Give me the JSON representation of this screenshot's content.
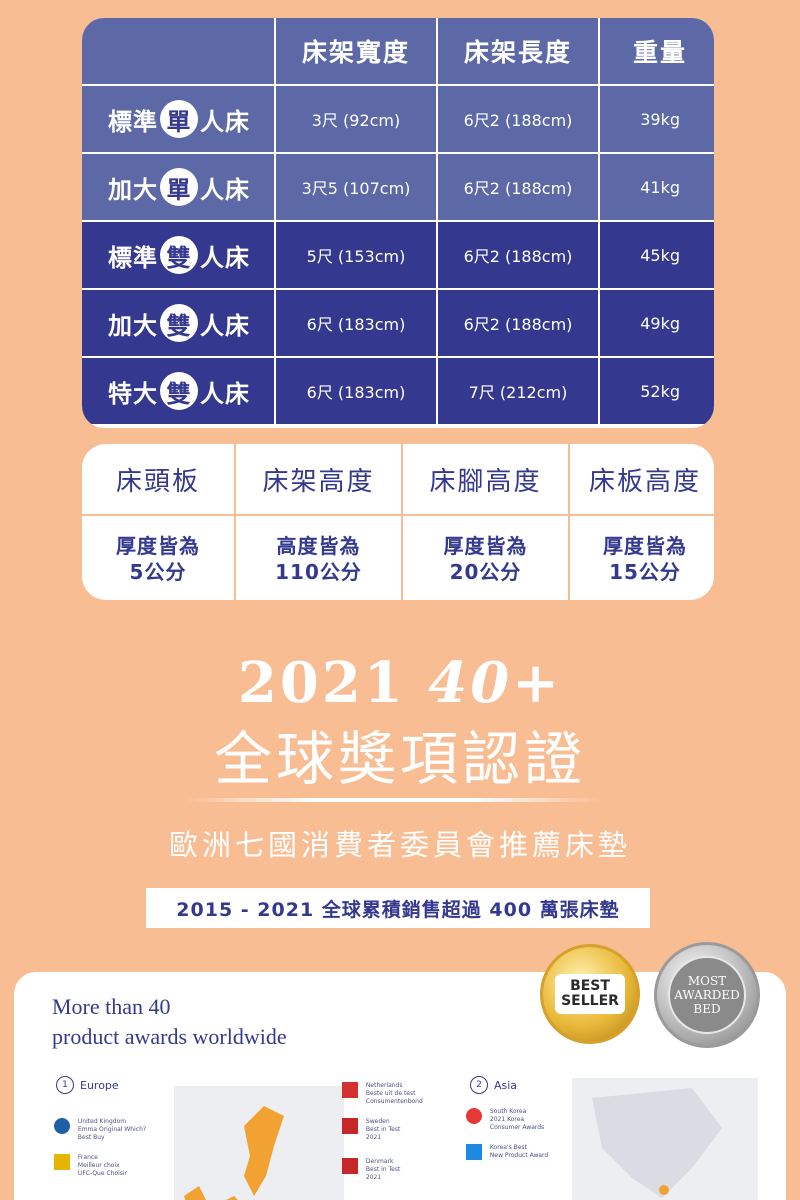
{
  "size_table": {
    "headers": [
      "",
      "床架寬度",
      "床架長度",
      "重量"
    ],
    "rows": [
      {
        "prefix": "標準",
        "circled": "單",
        "suffix": "人床",
        "width": "3尺 (92cm)",
        "length": "6尺2 (188cm)",
        "weight": "39kg"
      },
      {
        "prefix": "加大",
        "circled": "單",
        "suffix": "人床",
        "width": "3尺5 (107cm)",
        "length": "6尺2 (188cm)",
        "weight": "41kg"
      },
      {
        "prefix": "標準",
        "circled": "雙",
        "suffix": "人床",
        "width": "5尺 (153cm)",
        "length": "6尺2 (188cm)",
        "weight": "45kg"
      },
      {
        "prefix": "加大",
        "circled": "雙",
        "suffix": "人床",
        "width": "6尺 (183cm)",
        "length": "6尺2 (188cm)",
        "weight": "49kg"
      },
      {
        "prefix": "特大",
        "circled": "雙",
        "suffix": "人床",
        "width": "6尺 (183cm)",
        "length": "7尺 (212cm)",
        "weight": "52kg"
      }
    ]
  },
  "spec_table": {
    "headers": [
      "床頭板",
      "床架高度",
      "床腳高度",
      "床板高度"
    ],
    "values": [
      "厚度皆為\n5公分",
      "高度皆為\n110公分",
      "厚度皆為\n20公分",
      "厚度皆為\n15公分"
    ]
  },
  "awards": {
    "year": "2021",
    "count": "40+",
    "title": "全球獎項認證",
    "europe_line": "歐洲七國消費者委員會推薦床墊",
    "sales_line": "2015 - 2021 全球累積銷售超過 400 萬張床墊",
    "card_heading_1": "More than 40",
    "card_heading_2": "product awards worldwide",
    "region_europe_num": "1",
    "region_europe": "Europe",
    "region_asia_num": "2",
    "region_asia": "Asia",
    "badge_best_1": "BEST",
    "badge_best_2": "SELLER",
    "badge_most_1": "MOST",
    "badge_most_2": "AWARDED",
    "badge_most_3": "BED",
    "items": [
      {
        "country": "United Kingdom",
        "award": "Emma Original Which?",
        "detail": "Best Buy"
      },
      {
        "country": "France",
        "award": "Meilleur choix",
        "detail": "UFC-Que Choisir"
      },
      {
        "country": "Netherlands",
        "award": "Beste uit de test",
        "detail": "Consumentenbond"
      },
      {
        "country": "Sweden",
        "award": "Best in Test",
        "detail": "2021"
      },
      {
        "country": "Denmark",
        "award": "Best in Test",
        "detail": "2021"
      },
      {
        "country": "South Korea",
        "award": "2021 Korea",
        "detail": "Consumer Awards"
      },
      {
        "country": "",
        "award": "Korea's Best",
        "detail": "New Product Award"
      }
    ]
  },
  "colors": {
    "background": "#f9bd94",
    "navy": "#34398f",
    "periwinkle": "#5d68a6"
  }
}
